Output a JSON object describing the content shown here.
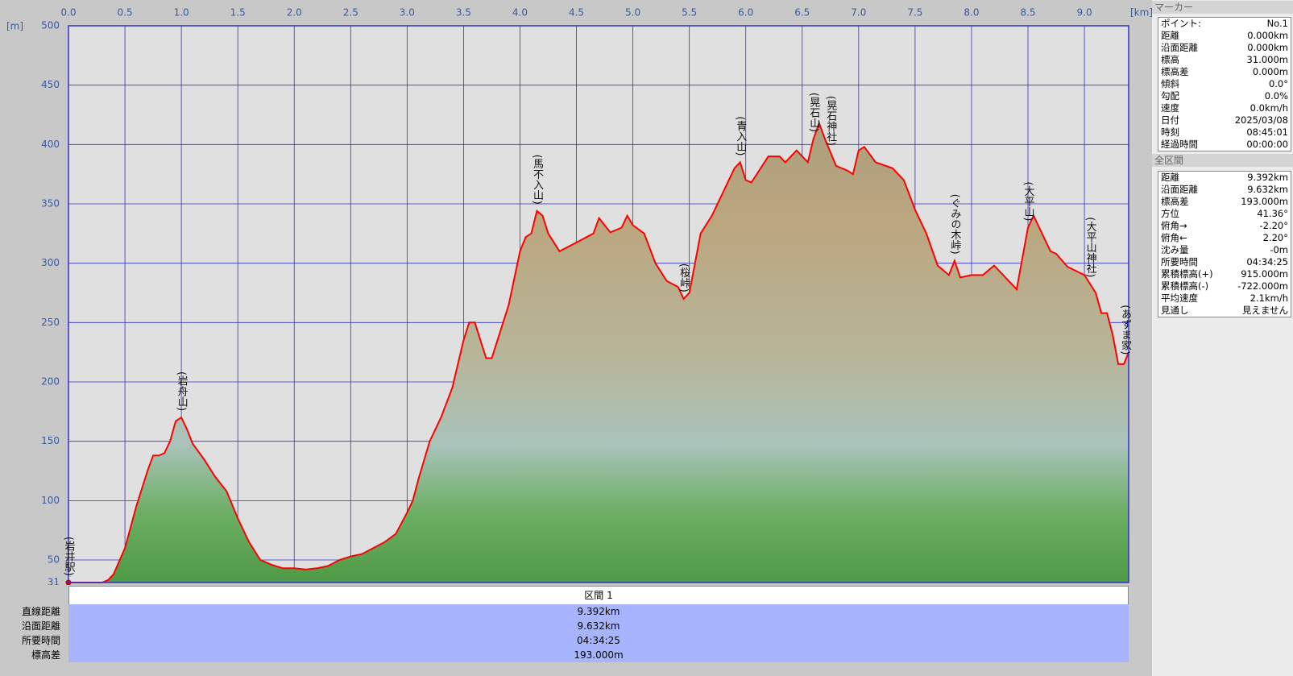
{
  "chart_data": {
    "type": "area",
    "x_label": "[km]",
    "y_label": "[m]",
    "x": [
      0,
      0.1,
      0.2,
      0.3,
      0.35,
      0.4,
      0.5,
      0.6,
      0.7,
      0.75,
      0.8,
      0.85,
      0.9,
      0.95,
      1.0,
      1.05,
      1.1,
      1.2,
      1.3,
      1.4,
      1.5,
      1.6,
      1.7,
      1.8,
      1.9,
      2.0,
      2.1,
      2.2,
      2.3,
      2.4,
      2.5,
      2.6,
      2.7,
      2.8,
      2.9,
      3.0,
      3.05,
      3.1,
      3.2,
      3.3,
      3.4,
      3.5,
      3.55,
      3.6,
      3.7,
      3.75,
      3.8,
      3.9,
      4.0,
      4.05,
      4.1,
      4.15,
      4.2,
      4.25,
      4.35,
      4.45,
      4.55,
      4.65,
      4.7,
      4.8,
      4.9,
      4.95,
      5.0,
      5.1,
      5.2,
      5.3,
      5.4,
      5.45,
      5.5,
      5.6,
      5.7,
      5.8,
      5.9,
      5.95,
      6.0,
      6.05,
      6.2,
      6.3,
      6.35,
      6.45,
      6.55,
      6.6,
      6.65,
      6.7,
      6.8,
      6.9,
      6.95,
      7.0,
      7.05,
      7.15,
      7.3,
      7.4,
      7.5,
      7.6,
      7.7,
      7.8,
      7.85,
      7.9,
      8.0,
      8.1,
      8.2,
      8.3,
      8.4,
      8.5,
      8.55,
      8.6,
      8.7,
      8.75,
      8.85,
      9.0,
      9.1,
      9.15,
      9.2,
      9.25,
      9.3,
      9.35,
      9.392
    ],
    "series": [
      {
        "name": "標高",
        "color": "#ff0000",
        "values": [
          31,
          31,
          31,
          31,
          33,
          38,
          60,
          95,
          125,
          138,
          138,
          140,
          150,
          167,
          170,
          160,
          148,
          135,
          120,
          108,
          85,
          65,
          50,
          46,
          43,
          43,
          42,
          43,
          45,
          50,
          53,
          55,
          60,
          65,
          72,
          90,
          100,
          118,
          150,
          170,
          195,
          235,
          250,
          250,
          220,
          220,
          235,
          265,
          310,
          322,
          325,
          344,
          340,
          325,
          310,
          315,
          320,
          325,
          338,
          326,
          330,
          340,
          332,
          325,
          300,
          285,
          280,
          270,
          275,
          325,
          340,
          360,
          380,
          385,
          370,
          368,
          390,
          390,
          385,
          395,
          385,
          405,
          418,
          405,
          382,
          378,
          375,
          395,
          398,
          385,
          380,
          370,
          345,
          325,
          298,
          290,
          302,
          288,
          290,
          290,
          298,
          288,
          278,
          330,
          340,
          330,
          310,
          308,
          297,
          290,
          275,
          258,
          258,
          240,
          215,
          215,
          225
        ]
      }
    ],
    "xlim": [
      0,
      9.392
    ],
    "ylim": [
      31,
      500
    ],
    "xticks": [
      {
        "value": 0,
        "label": "0.0"
      },
      0.5,
      {
        "value": 1,
        "label": "1.0"
      },
      1.5,
      {
        "value": 2,
        "label": "2.0"
      },
      2.5,
      {
        "value": 3,
        "label": "3.0"
      },
      3.5,
      {
        "value": 4,
        "label": "4.0"
      },
      4.5,
      {
        "value": 5,
        "label": "5.0"
      },
      5.5,
      {
        "value": 6,
        "label": "6.0"
      },
      6.5,
      {
        "value": 7,
        "label": "7.0"
      },
      7.5,
      {
        "value": 8,
        "label": "8.0"
      },
      8.5,
      {
        "value": 9,
        "label": "9.0"
      }
    ],
    "yticks": [
      31,
      50,
      100,
      150,
      200,
      250,
      300,
      350,
      400,
      450,
      500
    ],
    "grid": true,
    "annotations": [
      {
        "text": "(岩井駅)",
        "x": 0
      },
      {
        "text": "(岩舟山)",
        "x": 1.0
      },
      {
        "text": "(馬不入山)",
        "x": 4.15
      },
      {
        "text": "(桜峠)",
        "x": 5.45
      },
      {
        "text": "(青入山)",
        "x": 5.95
      },
      {
        "text": "(晃石山)",
        "x": 6.6
      },
      {
        "text": "(晃石神社)",
        "x": 6.75
      },
      {
        "text": "(ぐみの木峠)",
        "x": 7.85
      },
      {
        "text": "(大平山)",
        "x": 8.5
      },
      {
        "text": "(大平山神社)",
        "x": 9.05
      },
      {
        "text": "(あずま家)",
        "x": 9.36
      }
    ]
  },
  "marker_panel": {
    "title": "マーカー",
    "rows": [
      [
        "ポイント:",
        "No.1"
      ],
      [
        "距離",
        "0.000km"
      ],
      [
        "沿面距離",
        "0.000km"
      ],
      [
        "標高",
        "31.000m"
      ],
      [
        "標高差",
        "0.000m"
      ],
      [
        "傾斜",
        "0.0°"
      ],
      [
        "勾配",
        "0.0%"
      ],
      [
        "速度",
        "0.0km/h"
      ],
      [
        "日付",
        "2025/03/08"
      ],
      [
        "時刻",
        "08:45:01"
      ],
      [
        "経過時間",
        "00:00:00"
      ]
    ]
  },
  "section_panel": {
    "title": "全区間",
    "rows": [
      [
        "距離",
        "9.392km"
      ],
      [
        "沿面距離",
        "9.632km"
      ],
      [
        "標高差",
        "193.000m"
      ],
      [
        "方位",
        "41.36°"
      ],
      [
        "俯角→",
        "-2.20°"
      ],
      [
        "俯角←",
        "2.20°"
      ],
      [
        "沈み量",
        "-0m"
      ],
      [
        "所要時間",
        "04:34:25"
      ],
      [
        "累積標高(+)",
        "915.000m"
      ],
      [
        "累積標高(-)",
        "-722.000m"
      ],
      [
        "平均速度",
        "2.1km/h"
      ],
      [
        "見通し",
        "見えません"
      ]
    ]
  },
  "segment_table": {
    "header": "区間 1",
    "rows": [
      [
        "直線距離",
        "9.392km"
      ],
      [
        "沿面距離",
        "9.632km"
      ],
      [
        "所要時間",
        "04:34:25"
      ],
      [
        "標高差",
        "193.000m"
      ]
    ]
  }
}
